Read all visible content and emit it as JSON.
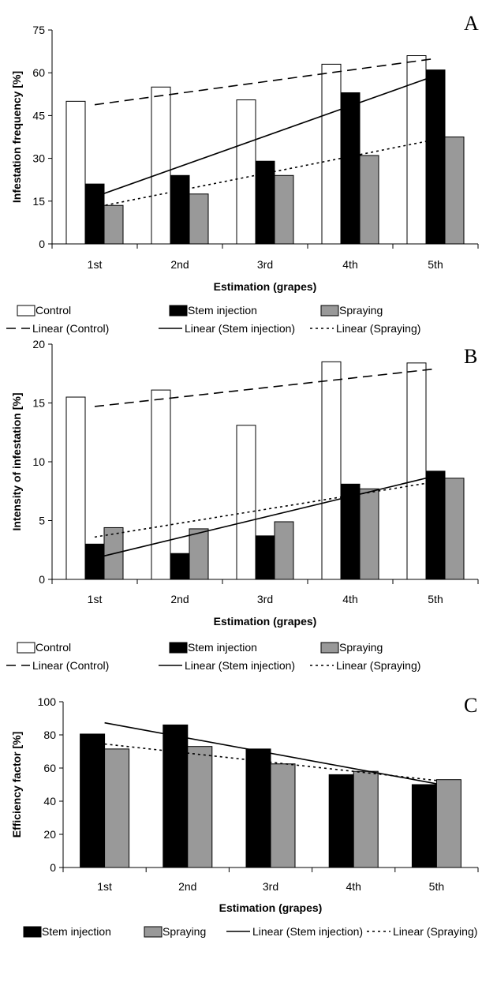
{
  "chart_data": [
    {
      "type": "bar",
      "panel_label": "A",
      "xlabel": "Estimation (grapes)",
      "ylabel": "Infestation frequency [%]",
      "ylim": [
        0,
        75
      ],
      "yticks": [
        0,
        15,
        30,
        45,
        60,
        75
      ],
      "categories": [
        "1st",
        "2nd",
        "3rd",
        "4th",
        "5th"
      ],
      "grid": false,
      "legend_position": "bottom",
      "series": [
        {
          "name": "Control",
          "fill": "#ffffff",
          "values": [
            50,
            55,
            50.5,
            63,
            66
          ]
        },
        {
          "name": "Stem injection",
          "fill": "#000000",
          "values": [
            21,
            24,
            29,
            53,
            61
          ]
        },
        {
          "name": "Spraying",
          "fill": "#999999",
          "values": [
            13.5,
            17.5,
            24,
            31,
            37.5
          ]
        }
      ],
      "trendlines": [
        {
          "name": "Linear (Control)",
          "dash": "long",
          "start": 48.8,
          "end": 65
        },
        {
          "name": "Linear (Stem injection)",
          "dash": "solid",
          "start": 16.5,
          "end": 59
        },
        {
          "name": "Linear (Spraying)",
          "dash": "dot",
          "start": 12.8,
          "end": 36.6
        }
      ]
    },
    {
      "type": "bar",
      "panel_label": "B",
      "xlabel": "Estimation (grapes)",
      "ylabel": "Intensity of infestation [%]",
      "ylim": [
        0,
        20
      ],
      "yticks": [
        0,
        5,
        10,
        15,
        20
      ],
      "categories": [
        "1st",
        "2nd",
        "3rd",
        "4th",
        "5th"
      ],
      "grid": false,
      "legend_position": "bottom",
      "series": [
        {
          "name": "Control",
          "fill": "#ffffff",
          "values": [
            15.5,
            16.1,
            13.1,
            18.5,
            18.4
          ]
        },
        {
          "name": "Stem injection",
          "fill": "#000000",
          "values": [
            3.0,
            2.2,
            3.7,
            8.1,
            9.2
          ]
        },
        {
          "name": "Spraying",
          "fill": "#999999",
          "values": [
            4.4,
            4.3,
            4.9,
            7.7,
            8.6
          ]
        }
      ],
      "trendlines": [
        {
          "name": "Linear (Control)",
          "dash": "long",
          "start": 14.7,
          "end": 17.9
        },
        {
          "name": "Linear (Stem injection)",
          "dash": "solid",
          "start": 1.8,
          "end": 8.8
        },
        {
          "name": "Linear (Spraying)",
          "dash": "dot",
          "start": 3.6,
          "end": 8.3
        }
      ]
    },
    {
      "type": "bar",
      "panel_label": "C",
      "xlabel": "Estimation (grapes)",
      "ylabel": "Efficiency factor [%]",
      "ylim": [
        0,
        100
      ],
      "yticks": [
        0,
        20,
        40,
        60,
        80,
        100
      ],
      "categories": [
        "1st",
        "2nd",
        "3rd",
        "4th",
        "5th"
      ],
      "grid": false,
      "legend_position": "bottom",
      "series": [
        {
          "name": "Stem injection",
          "fill": "#000000",
          "values": [
            80.5,
            86,
            71.5,
            56,
            50
          ]
        },
        {
          "name": "Spraying",
          "fill": "#999999",
          "values": [
            71.5,
            73,
            62.5,
            58,
            53
          ]
        }
      ],
      "trendlines": [
        {
          "name": "Linear (Stem injection)",
          "dash": "solid",
          "start": 87.3,
          "end": 50.5
        },
        {
          "name": "Linear (Spraying)",
          "dash": "dot",
          "start": 74.5,
          "end": 52.5
        }
      ]
    }
  ]
}
